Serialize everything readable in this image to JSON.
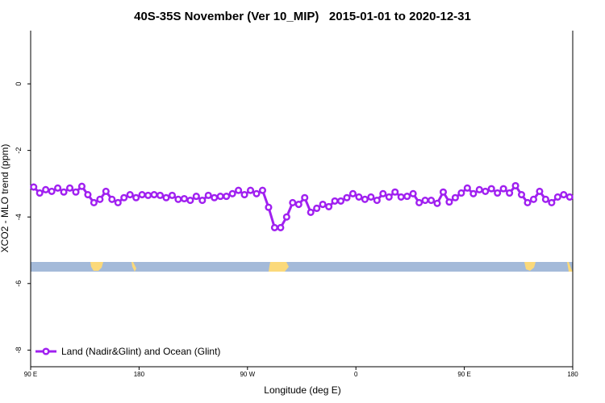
{
  "chart_data": {
    "type": "line",
    "title": "40S-35S November (Ver 10_MIP)   2015-01-01 to 2020-12-31",
    "xlabel": "Longitude (deg E)",
    "ylabel": "XCO2 - MLO trend (ppm)",
    "x": [
      92.5,
      97.5,
      102.5,
      107.5,
      112.5,
      117.5,
      122.5,
      127.5,
      132.5,
      137.5,
      142.5,
      147.5,
      152.5,
      157.5,
      162.5,
      167.5,
      172.5,
      177.5,
      182.5,
      187.5,
      192.5,
      197.5,
      202.5,
      207.5,
      212.5,
      217.5,
      222.5,
      227.5,
      232.5,
      237.5,
      242.5,
      247.5,
      252.5,
      257.5,
      262.5,
      267.5,
      272.5,
      277.5,
      282.5,
      287.5,
      292.5,
      297.5,
      302.5,
      307.5,
      312.5,
      317.5,
      322.5,
      327.5,
      332.5,
      337.5,
      342.5,
      347.5,
      352.5,
      357.5,
      362.5,
      367.5,
      372.5,
      377.5,
      382.5,
      387.5,
      392.5,
      397.5,
      402.5,
      407.5,
      412.5,
      417.5,
      422.5,
      427.5,
      432.5,
      437.5,
      442.5,
      447.5,
      452.5,
      457.5,
      462.5,
      467.5,
      472.5,
      477.5,
      482.5,
      487.5,
      492.5,
      497.5,
      502.5,
      507.5,
      512.5,
      517.5,
      522.5,
      527.5,
      532.5,
      537.5
    ],
    "series": [
      {
        "name": "Land (Nadir&Glint) and Ocean (Glint)",
        "color": "#a020f0",
        "values": [
          -3.1,
          -3.28,
          -3.18,
          -3.23,
          -3.13,
          -3.25,
          -3.13,
          -3.25,
          -3.08,
          -3.33,
          -3.57,
          -3.47,
          -3.23,
          -3.47,
          -3.57,
          -3.42,
          -3.33,
          -3.42,
          -3.33,
          -3.35,
          -3.33,
          -3.35,
          -3.42,
          -3.35,
          -3.47,
          -3.45,
          -3.5,
          -3.38,
          -3.5,
          -3.35,
          -3.42,
          -3.38,
          -3.38,
          -3.3,
          -3.2,
          -3.33,
          -3.2,
          -3.3,
          -3.2,
          -3.71,
          -4.32,
          -4.32,
          -4.0,
          -3.57,
          -3.62,
          -3.42,
          -3.86,
          -3.74,
          -3.62,
          -3.69,
          -3.52,
          -3.52,
          -3.42,
          -3.3,
          -3.4,
          -3.47,
          -3.4,
          -3.5,
          -3.3,
          -3.4,
          -3.25,
          -3.4,
          -3.38,
          -3.3,
          -3.57,
          -3.5,
          -3.5,
          -3.59,
          -3.25,
          -3.55,
          -3.42,
          -3.28,
          -3.13,
          -3.3,
          -3.18,
          -3.23,
          -3.15,
          -3.28,
          -3.15,
          -3.28,
          -3.06,
          -3.33,
          -3.57,
          -3.47,
          -3.23,
          -3.47,
          -3.57,
          -3.4,
          -3.33,
          -3.4
        ]
      }
    ],
    "xlim": [
      90,
      540
    ],
    "xticks": [
      {
        "value": 90,
        "label": "90 E"
      },
      180,
      {
        "value": 270,
        "label": "90 W"
      },
      {
        "value": 360,
        "label": "0"
      },
      {
        "value": 450,
        "label": "90 E"
      },
      {
        "value": 540,
        "label": "180"
      }
    ],
    "ylim": [
      -8.5,
      1.6
    ],
    "yticks": [
      -8,
      -6,
      -4,
      -2,
      0
    ],
    "legend": "bottom-left"
  }
}
